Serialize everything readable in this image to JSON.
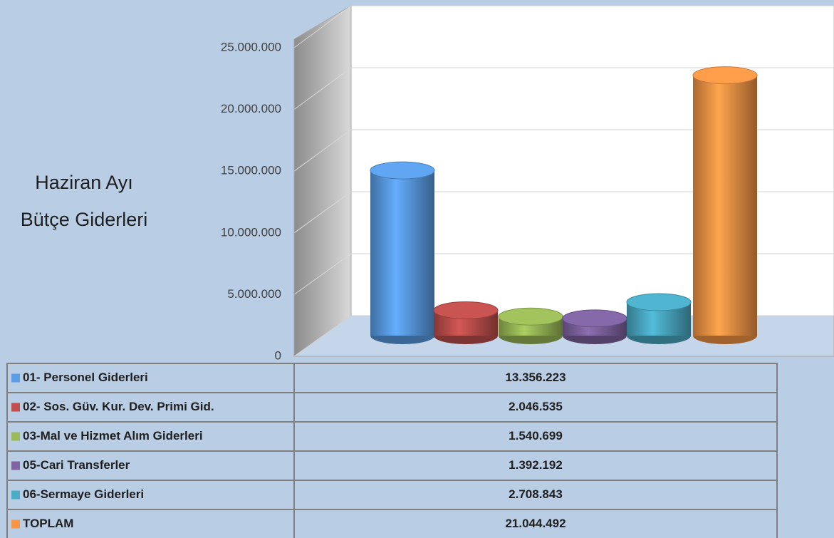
{
  "chart_data": {
    "type": "bar3d",
    "title": [
      "Haziran Ayı",
      "Bütçe Giderleri"
    ],
    "categories": [
      "01- Personel Giderleri",
      "02- Sos. Güv. Kur. Dev. Primi Gid.",
      "03-Mal ve Hizmet Alım Giderleri",
      "05-Cari Transferler",
      "06-Sermaye Giderleri",
      "TOPLAM"
    ],
    "values": [
      13356223,
      2046535,
      1540699,
      1392192,
      2708843,
      21044492
    ],
    "value_labels": [
      "13.356.223",
      "2.046.535",
      "1.540.699",
      "1.392.192",
      "2.708.843",
      "21.044.492"
    ],
    "colors": [
      "#5b9ee6",
      "#c0504d",
      "#9bbb59",
      "#8064a2",
      "#4bacc6",
      "#f79646"
    ],
    "ylim": [
      0,
      25000000
    ],
    "yticks": [
      0,
      {
        "value": 5000000,
        "label": "5.000.000"
      },
      {
        "value": 10000000,
        "label": "10.000.000"
      },
      {
        "value": 15000000,
        "label": "15.000.000"
      },
      {
        "value": 20000000,
        "label": "20.000.000"
      },
      {
        "value": 25000000,
        "label": "25.000.000"
      }
    ],
    "grid": true,
    "data_table": true
  }
}
